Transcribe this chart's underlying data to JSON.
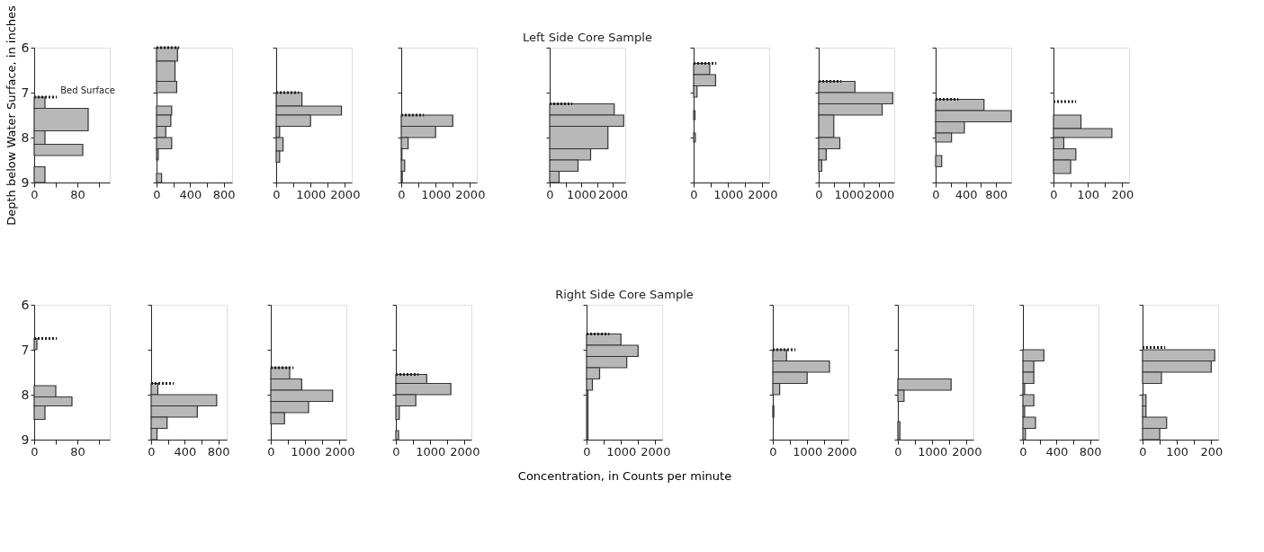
{
  "chart_data": [
    {
      "type": "histogram",
      "orientation": "horizontal",
      "ylabel": "Depth below Water Surface, in inches",
      "color": "#b8b8b8",
      "bins": [
        7.1,
        7.35,
        7.85,
        8.15,
        8.4,
        8.65,
        9.0
      ],
      "values": [
        20,
        100,
        20,
        90,
        0,
        20
      ],
      "xlim": [
        0,
        140
      ],
      "xticks": [
        0,
        {
          "value": 40,
          "label": null
        },
        80,
        {
          "value": 120,
          "label": null
        }
      ],
      "ylim": [
        9,
        6
      ],
      "yticks": [
        6,
        7,
        8,
        9
      ],
      "ref_lines": [
        {
          "axis": "y",
          "value": 7.1,
          "label": "Bed Surface"
        }
      ]
    },
    {
      "type": "histogram",
      "orientation": "horizontal",
      "color": "#b8b8b8",
      "bins": [
        6.0,
        6.3,
        6.75,
        7.0,
        7.3,
        7.5,
        7.75,
        8.0,
        8.25,
        8.5,
        8.8,
        9.0
      ],
      "values": [
        250,
        220,
        240,
        0,
        180,
        170,
        110,
        180,
        20,
        0,
        60
      ],
      "xlim": [
        0,
        900
      ],
      "xticks": [
        0,
        {
          "value": 200,
          "label": null
        },
        400,
        {
          "value": 600,
          "label": null
        },
        800
      ],
      "ylim": [
        9,
        6
      ],
      "yticks": [
        6,
        7,
        8,
        9
      ],
      "tick_labels": "x",
      "ref_lines": [
        {
          "axis": "y",
          "value": 6.0
        }
      ]
    },
    {
      "type": "histogram",
      "orientation": "horizontal",
      "color": "#b8b8b8",
      "bins": [
        7.0,
        7.3,
        7.5,
        7.75,
        8.0,
        8.3,
        8.55
      ],
      "values": [
        750,
        1900,
        1000,
        100,
        200,
        100
      ],
      "xlim": [
        0,
        2200
      ],
      "xticks": [
        0,
        {
          "value": 500,
          "label": null
        },
        1000,
        {
          "value": 1500,
          "label": null
        },
        2000
      ],
      "ylim": [
        9,
        6
      ],
      "yticks": [
        6,
        7,
        8,
        9
      ],
      "tick_labels": "x",
      "ref_lines": [
        {
          "axis": "y",
          "value": 7.0
        }
      ]
    },
    {
      "type": "histogram",
      "orientation": "horizontal",
      "color": "#b8b8b8",
      "bins": [
        7.5,
        7.75,
        8.0,
        8.25,
        8.5,
        8.75,
        9.0
      ],
      "values": [
        1500,
        1000,
        200,
        20,
        100,
        30
      ],
      "xlim": [
        0,
        2200
      ],
      "xticks": [
        0,
        {
          "value": 500,
          "label": null
        },
        1000,
        {
          "value": 1500,
          "label": null
        },
        2000
      ],
      "ylim": [
        9,
        6
      ],
      "yticks": [
        6,
        7,
        8,
        9
      ],
      "tick_labels": "x",
      "ref_lines": [
        {
          "axis": "y",
          "value": 7.5
        }
      ]
    },
    {
      "type": "histogram",
      "orientation": "horizontal",
      "title": "Left Side Core Sample",
      "color": "#b8b8b8",
      "bins": [
        7.25,
        7.5,
        7.75,
        8.25,
        8.5,
        8.75,
        9.0
      ],
      "values": [
        2050,
        2350,
        1850,
        1300,
        900,
        300
      ],
      "xlim": [
        0,
        2400
      ],
      "xticks": [
        0,
        {
          "value": 500,
          "label": null
        },
        1000,
        {
          "value": 1500,
          "label": null
        },
        2000
      ],
      "ylim": [
        9,
        6
      ],
      "yticks": [
        6,
        7,
        8,
        9
      ],
      "tick_labels": "x",
      "ref_lines": [
        {
          "axis": "y",
          "value": 7.25
        }
      ]
    },
    {
      "type": "histogram",
      "orientation": "horizontal",
      "color": "#b8b8b8",
      "bins": [
        6.35,
        6.6,
        6.85,
        7.1,
        7.4,
        7.6,
        7.9,
        8.1
      ],
      "values": [
        470,
        640,
        100,
        0,
        40,
        0,
        50
      ],
      "xlim": [
        0,
        2200
      ],
      "xticks": [
        0,
        {
          "value": 500,
          "label": null
        },
        1000,
        {
          "value": 1500,
          "label": null
        },
        2000
      ],
      "ylim": [
        9,
        6
      ],
      "yticks": [
        6,
        7,
        8,
        9
      ],
      "tick_labels": "x",
      "ref_lines": [
        {
          "axis": "y",
          "value": 6.35
        }
      ]
    },
    {
      "type": "histogram",
      "orientation": "horizontal",
      "color": "#b8b8b8",
      "bins": [
        6.75,
        7.0,
        7.25,
        7.5,
        8.0,
        8.25,
        8.5,
        8.75
      ],
      "values": [
        1200,
        2450,
        2100,
        500,
        700,
        250,
        100
      ],
      "xlim": [
        0,
        2500
      ],
      "xticks": [
        0,
        {
          "value": 500,
          "label": null
        },
        1000,
        {
          "value": 1500,
          "label": null
        },
        2000
      ],
      "ylim": [
        9,
        6
      ],
      "yticks": [
        6,
        7,
        8,
        9
      ],
      "tick_labels": "x",
      "ref_lines": [
        {
          "axis": "y",
          "value": 6.75
        }
      ]
    },
    {
      "type": "histogram",
      "orientation": "horizontal",
      "color": "#b8b8b8",
      "bins": [
        7.15,
        7.4,
        7.65,
        7.9,
        8.1,
        8.4,
        8.65
      ],
      "values": [
        640,
        1000,
        380,
        210,
        0,
        80
      ],
      "xlim": [
        0,
        1000
      ],
      "xticks": [
        0,
        {
          "value": 200,
          "label": null
        },
        400,
        {
          "value": 600,
          "label": null
        },
        800
      ],
      "ylim": [
        9,
        6
      ],
      "yticks": [
        6,
        7,
        8,
        9
      ],
      "tick_labels": "x",
      "ref_lines": [
        {
          "axis": "y",
          "value": 7.15
        }
      ]
    },
    {
      "type": "histogram",
      "orientation": "horizontal",
      "color": "#b8b8b8",
      "bins": [
        7.5,
        7.8,
        8.0,
        8.25,
        8.5,
        8.8
      ],
      "values": [
        80,
        170,
        30,
        65,
        50
      ],
      "xlim": [
        0,
        220
      ],
      "xticks": [
        0,
        {
          "value": 50,
          "label": null
        },
        100,
        {
          "value": 150,
          "label": null
        },
        200
      ],
      "ylim": [
        9,
        6
      ],
      "yticks": [
        6,
        7,
        8,
        9
      ],
      "tick_labels": "x",
      "ref_lines": [
        {
          "axis": "y",
          "value": 7.2
        }
      ]
    },
    {
      "type": "histogram",
      "orientation": "horizontal",
      "color": "#b8b8b8",
      "bins": [
        6.75,
        7.0,
        7.8,
        8.05,
        8.25,
        8.55
      ],
      "values": [
        5,
        0,
        40,
        70,
        20
      ],
      "xlim": [
        0,
        140
      ],
      "xticks": [
        0,
        {
          "value": 40,
          "label": null
        },
        80,
        {
          "value": 120,
          "label": null
        }
      ],
      "ylim": [
        9,
        6
      ],
      "yticks": [
        6,
        7,
        8,
        9
      ],
      "ref_lines": [
        {
          "axis": "y",
          "value": 6.75
        }
      ]
    },
    {
      "type": "histogram",
      "orientation": "horizontal",
      "color": "#b8b8b8",
      "bins": [
        7.75,
        8.0,
        8.25,
        8.5,
        8.75,
        9.0
      ],
      "values": [
        80,
        780,
        550,
        190,
        70
      ],
      "xlim": [
        0,
        900
      ],
      "xticks": [
        0,
        {
          "value": 200,
          "label": null
        },
        400,
        {
          "value": 600,
          "label": null
        },
        800
      ],
      "ylim": [
        9,
        6
      ],
      "yticks": [
        6,
        7,
        8,
        9
      ],
      "tick_labels": "x",
      "ref_lines": [
        {
          "axis": "y",
          "value": 7.75
        }
      ]
    },
    {
      "type": "histogram",
      "orientation": "horizontal",
      "color": "#b8b8b8",
      "bins": [
        7.4,
        7.65,
        7.9,
        8.15,
        8.4,
        8.65
      ],
      "values": [
        550,
        900,
        1800,
        1100,
        400
      ],
      "xlim": [
        0,
        2200
      ],
      "xticks": [
        0,
        {
          "value": 500,
          "label": null
        },
        1000,
        {
          "value": 1500,
          "label": null
        },
        2000
      ],
      "ylim": [
        9,
        6
      ],
      "yticks": [
        6,
        7,
        8,
        9
      ],
      "tick_labels": "x",
      "ref_lines": [
        {
          "axis": "y",
          "value": 7.4
        }
      ]
    },
    {
      "type": "histogram",
      "orientation": "horizontal",
      "color": "#b8b8b8",
      "bins": [
        7.55,
        7.75,
        8.0,
        8.25,
        8.55,
        8.8,
        9.0
      ],
      "values": [
        900,
        1600,
        580,
        100,
        0,
        80
      ],
      "xlim": [
        0,
        2200
      ],
      "xticks": [
        0,
        {
          "value": 500,
          "label": null
        },
        1000,
        {
          "value": 1500,
          "label": null
        },
        2000
      ],
      "ylim": [
        9,
        6
      ],
      "yticks": [
        6,
        7,
        8,
        9
      ],
      "tick_labels": "x",
      "ref_lines": [
        {
          "axis": "y",
          "value": 7.55
        }
      ]
    },
    {
      "type": "histogram",
      "orientation": "horizontal",
      "title": "Right Side Core Sample",
      "xlabel": "Concentration, in Counts per minute",
      "color": "#b8b8b8",
      "bins": [
        6.65,
        6.9,
        7.15,
        7.4,
        7.65,
        7.9,
        9.0
      ],
      "values": [
        1000,
        1500,
        1170,
        380,
        170,
        40
      ],
      "xlim": [
        0,
        2200
      ],
      "xticks": [
        0,
        {
          "value": 500,
          "label": null
        },
        1000,
        {
          "value": 1500,
          "label": null
        },
        2000
      ],
      "ylim": [
        9,
        6
      ],
      "yticks": [
        6,
        7,
        8,
        9
      ],
      "tick_labels": "x",
      "ref_lines": [
        {
          "axis": "y",
          "value": 6.65
        }
      ]
    },
    {
      "type": "histogram",
      "orientation": "horizontal",
      "color": "#b8b8b8",
      "bins": [
        7.0,
        7.25,
        7.5,
        7.75,
        8.0,
        8.25,
        8.5
      ],
      "values": [
        400,
        1650,
        1000,
        200,
        0,
        30
      ],
      "xlim": [
        0,
        2200
      ],
      "xticks": [
        0,
        {
          "value": 500,
          "label": null
        },
        1000,
        {
          "value": 1500,
          "label": null
        },
        2000
      ],
      "ylim": [
        9,
        6
      ],
      "yticks": [
        6,
        7,
        8,
        9
      ],
      "tick_labels": "x",
      "ref_lines": [
        {
          "axis": "y",
          "value": 7.0
        }
      ]
    },
    {
      "type": "histogram",
      "orientation": "horizontal",
      "color": "#b8b8b8",
      "bins": [
        7.65,
        7.9,
        8.15,
        8.6,
        9.0
      ],
      "values": [
        1550,
        180,
        0,
        60
      ],
      "xlim": [
        0,
        2200
      ],
      "xticks": [
        0,
        {
          "value": 500,
          "label": null
        },
        1000,
        {
          "value": 1500,
          "label": null
        },
        2000
      ],
      "ylim": [
        9,
        6
      ],
      "yticks": [
        6,
        7,
        8,
        9
      ],
      "tick_labels": "x"
    },
    {
      "type": "histogram",
      "orientation": "horizontal",
      "color": "#b8b8b8",
      "bins": [
        7.0,
        7.25,
        7.5,
        7.75,
        8.0,
        8.25,
        8.5,
        8.75,
        9.0
      ],
      "values": [
        250,
        130,
        130,
        20,
        130,
        20,
        150,
        30
      ],
      "xlim": [
        0,
        900
      ],
      "xticks": [
        0,
        {
          "value": 200,
          "label": null
        },
        400,
        {
          "value": 600,
          "label": null
        },
        800
      ],
      "ylim": [
        9,
        6
      ],
      "yticks": [
        6,
        7,
        8,
        9
      ],
      "tick_labels": "x"
    },
    {
      "type": "histogram",
      "orientation": "horizontal",
      "color": "#b8b8b8",
      "bins": [
        7.0,
        7.25,
        7.5,
        7.75,
        8.0,
        8.25,
        8.5,
        8.75,
        9.0
      ],
      "values": [
        210,
        200,
        55,
        0,
        10,
        10,
        70,
        50
      ],
      "xlim": [
        0,
        220
      ],
      "xticks": [
        0,
        {
          "value": 50,
          "label": null
        },
        100,
        {
          "value": 150,
          "label": null
        },
        200
      ],
      "ylim": [
        9,
        6
      ],
      "yticks": [
        6,
        7,
        8,
        9
      ],
      "tick_labels": "x",
      "ref_lines": [
        {
          "axis": "y",
          "value": 6.95
        }
      ]
    }
  ]
}
